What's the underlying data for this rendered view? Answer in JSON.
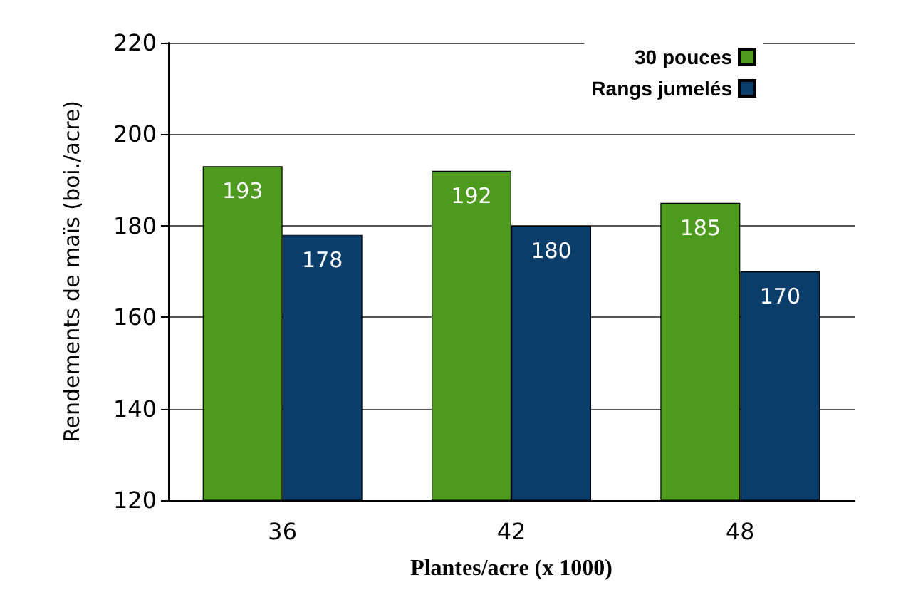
{
  "chart_data": {
    "type": "bar",
    "xlabel": "Plantes/acre (x 1000)",
    "ylabel": "Rendements de maïs (boi./acre)",
    "categories": [
      "36",
      "42",
      "48"
    ],
    "series": [
      {
        "name": "30 pouces",
        "color": "#4e9a1e",
        "values": [
          193,
          192,
          185
        ]
      },
      {
        "name": "Rangs jumelés",
        "color": "#0b3d6b",
        "values": [
          178,
          180,
          170
        ]
      }
    ],
    "ylim": [
      120,
      220
    ],
    "yticks": [
      120,
      140,
      160,
      180,
      200,
      220
    ],
    "grid": "y",
    "legend": "top right",
    "data_labels": true
  }
}
